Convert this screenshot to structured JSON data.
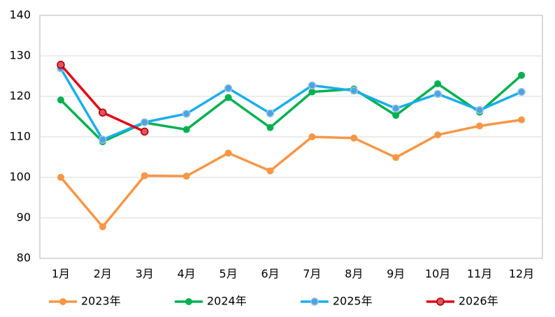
{
  "chart_data": {
    "type": "line",
    "categories": [
      "1月",
      "2月",
      "3月",
      "4月",
      "5月",
      "6月",
      "7月",
      "8月",
      "9月",
      "10月",
      "11月",
      "12月"
    ],
    "series": [
      {
        "name": "2023年",
        "color": "#f79646",
        "values": [
          100,
          87.8,
          100.4,
          100.3,
          106,
          101.6,
          110,
          109.7,
          104.9,
          110.5,
          112.7,
          114.2
        ]
      },
      {
        "name": "2024年",
        "color": "#00b050",
        "values": [
          119.1,
          108.8,
          113.5,
          111.8,
          119.7,
          112.3,
          121.1,
          121.8,
          115.3,
          123.1,
          116.1,
          125.2
        ]
      },
      {
        "name": "2025年",
        "color": "#1aaeea",
        "values": [
          126.9,
          109.3,
          113.6,
          115.7,
          122,
          115.8,
          122.7,
          121.4,
          117,
          120.6,
          116.6,
          121.1
        ]
      },
      {
        "name": "2026年",
        "color": "#e60012",
        "values": [
          127.8,
          116,
          111.3,
          null,
          null,
          null,
          null,
          null,
          null,
          null,
          null,
          null
        ]
      }
    ],
    "ylim": [
      80,
      140
    ],
    "yticks": [
      80,
      90,
      100,
      110,
      120,
      130,
      140
    ],
    "grid": true,
    "legend": "bottom"
  }
}
